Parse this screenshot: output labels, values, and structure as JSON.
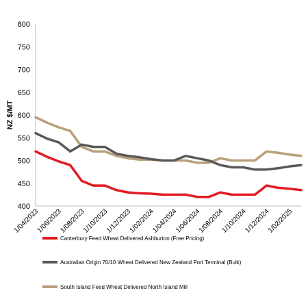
{
  "chart_data": {
    "type": "line",
    "title": "",
    "xlabel": "",
    "ylabel": "NZ $/MT",
    "ylim": [
      400,
      800
    ],
    "yticks": [
      400,
      450,
      500,
      550,
      600,
      650,
      700,
      750,
      800
    ],
    "grid": false,
    "legend_position": "bottom",
    "x": [
      "1/04/2023",
      "1/05/2023",
      "1/06/2023",
      "1/07/2023",
      "1/08/2023",
      "1/09/2023",
      "1/10/2023",
      "1/11/2023",
      "1/12/2023",
      "1/01/2024",
      "1/02/2024",
      "1/03/2024",
      "1/04/2024",
      "1/05/2024",
      "1/06/2024",
      "1/07/2024",
      "1/08/2024",
      "1/09/2024",
      "1/10/2024",
      "1/11/2024",
      "1/12/2024",
      "1/01/2025",
      "1/02/2025",
      "1/03/2025"
    ],
    "xtick_labels": [
      "1/04/2023",
      "1/06/2023",
      "1/08/2023",
      "1/10/2023",
      "1/12/2023",
      "1/02/2024",
      "1/04/2024",
      "1/06/2024",
      "1/08/2024",
      "1/10/2024",
      "1/12/2024",
      "1/02/2025"
    ],
    "series": [
      {
        "name": "Canterbury Feed Wheat Delivered Ashburton (Free Pricing)",
        "color": "#e31b23",
        "values": [
          520,
          508,
          498,
          490,
          455,
          445,
          445,
          435,
          430,
          428,
          427,
          425,
          425,
          425,
          420,
          420,
          430,
          425,
          425,
          425,
          445,
          440,
          438,
          435
        ]
      },
      {
        "name": "Australian Origin 70/10 Wheat Delivered New Zealand Port Terminal (Bulk)",
        "color": "#595959",
        "values": [
          560,
          548,
          540,
          520,
          535,
          530,
          530,
          515,
          510,
          507,
          503,
          500,
          500,
          510,
          505,
          500,
          490,
          485,
          485,
          480,
          480,
          483,
          487,
          490
        ]
      },
      {
        "name": "South Island Feed Wheat Delivered North Island Mill",
        "color": "#b8a07a",
        "values": [
          595,
          583,
          573,
          565,
          530,
          520,
          520,
          510,
          505,
          502,
          502,
          500,
          500,
          500,
          495,
          495,
          505,
          500,
          500,
          500,
          520,
          517,
          513,
          510
        ]
      }
    ]
  }
}
